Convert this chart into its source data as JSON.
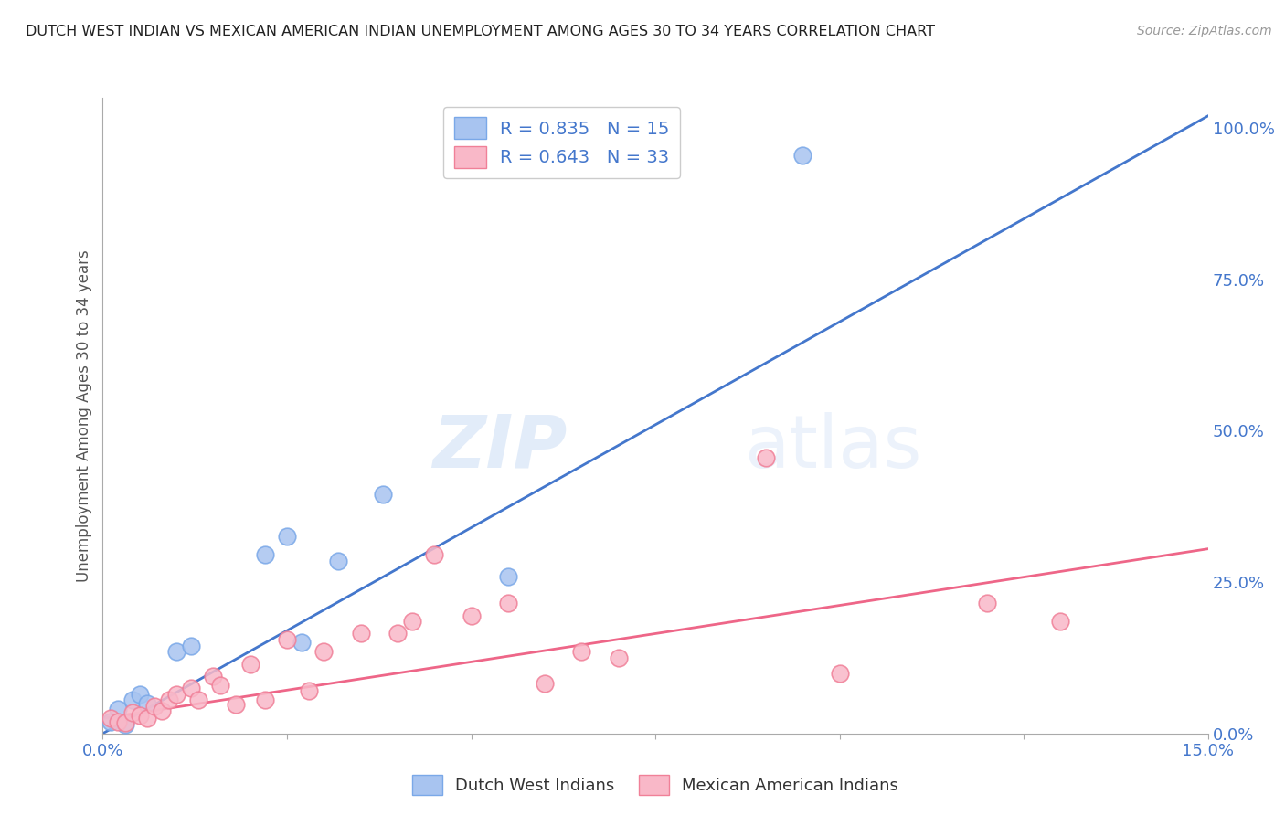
{
  "title": "DUTCH WEST INDIAN VS MEXICAN AMERICAN INDIAN UNEMPLOYMENT AMONG AGES 30 TO 34 YEARS CORRELATION CHART",
  "source": "Source: ZipAtlas.com",
  "ylabel": "Unemployment Among Ages 30 to 34 years",
  "blue_label": "Dutch West Indians",
  "pink_label": "Mexican American Indians",
  "blue_legend_text": "R = 0.835   N = 15",
  "pink_legend_text": "R = 0.643   N = 33",
  "xlim": [
    0.0,
    0.15
  ],
  "ylim": [
    0.0,
    1.05
  ],
  "right_yticks": [
    0.0,
    0.25,
    0.5,
    0.75,
    1.0
  ],
  "right_yticklabels": [
    "0.0%",
    "25.0%",
    "50.0%",
    "75.0%",
    "100.0%"
  ],
  "xticks": [
    0.0,
    0.025,
    0.05,
    0.075,
    0.1,
    0.125,
    0.15
  ],
  "xticklabels": [
    "0.0%",
    "",
    "",
    "",
    "",
    "",
    "15.0%"
  ],
  "blue_scatter_x": [
    0.001,
    0.002,
    0.003,
    0.004,
    0.005,
    0.006,
    0.01,
    0.012,
    0.022,
    0.025,
    0.027,
    0.032,
    0.038,
    0.055,
    0.095
  ],
  "blue_scatter_y": [
    0.02,
    0.04,
    0.015,
    0.055,
    0.065,
    0.05,
    0.135,
    0.145,
    0.295,
    0.325,
    0.15,
    0.285,
    0.395,
    0.26,
    0.955
  ],
  "pink_scatter_x": [
    0.001,
    0.002,
    0.003,
    0.004,
    0.005,
    0.006,
    0.007,
    0.008,
    0.009,
    0.01,
    0.012,
    0.013,
    0.015,
    0.016,
    0.018,
    0.02,
    0.022,
    0.025,
    0.028,
    0.03,
    0.035,
    0.04,
    0.042,
    0.045,
    0.05,
    0.055,
    0.06,
    0.065,
    0.07,
    0.09,
    0.1,
    0.12,
    0.13
  ],
  "pink_scatter_y": [
    0.025,
    0.02,
    0.018,
    0.035,
    0.03,
    0.025,
    0.045,
    0.038,
    0.055,
    0.065,
    0.075,
    0.055,
    0.095,
    0.08,
    0.048,
    0.115,
    0.055,
    0.155,
    0.07,
    0.135,
    0.165,
    0.165,
    0.185,
    0.295,
    0.195,
    0.215,
    0.082,
    0.135,
    0.125,
    0.455,
    0.1,
    0.215,
    0.185
  ],
  "blue_line_x": [
    0.0,
    0.15
  ],
  "blue_line_y": [
    0.0,
    1.02
  ],
  "pink_line_x": [
    0.0,
    0.15
  ],
  "pink_line_y": [
    0.025,
    0.305
  ],
  "blue_color": "#a8c4f0",
  "pink_color": "#f9b8c8",
  "blue_edge_color": "#7aa8e8",
  "pink_edge_color": "#f08098",
  "blue_line_color": "#4477cc",
  "pink_line_color": "#ee6688",
  "background_color": "#ffffff",
  "watermark_zip": "ZIP",
  "watermark_atlas": "atlas",
  "grid_color": "#cccccc",
  "title_color": "#222222",
  "source_color": "#999999",
  "axis_label_color": "#555555",
  "tick_color": "#4477cc"
}
